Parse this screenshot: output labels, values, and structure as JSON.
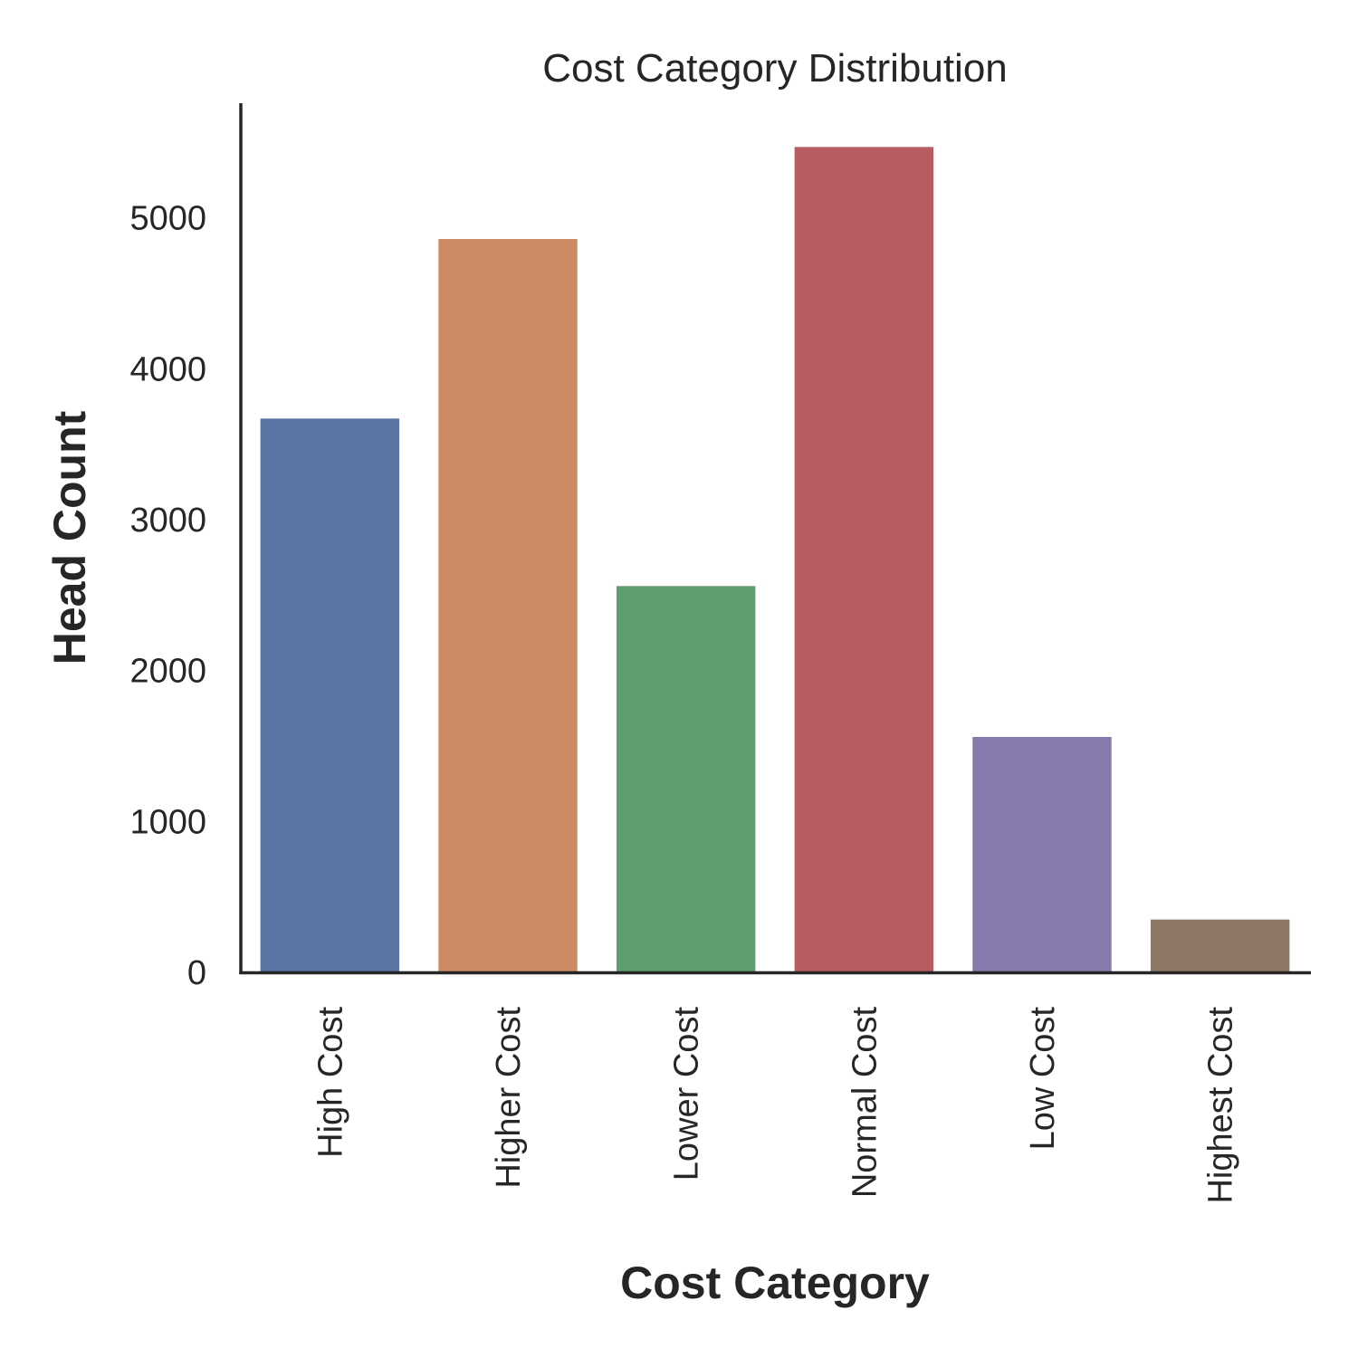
{
  "chart_data": {
    "type": "bar",
    "title": "Cost Category Distribution",
    "xlabel": "Cost Category",
    "ylabel": "Head Count",
    "categories": [
      "High Cost",
      "Higher Cost",
      "Lower Cost",
      "Normal Cost",
      "Low Cost",
      "Highest Cost"
    ],
    "values": [
      3670,
      4860,
      2560,
      5470,
      1560,
      350
    ],
    "colors": [
      "#5975a4",
      "#cc8963",
      "#5f9e6e",
      "#b55d60",
      "#857aab",
      "#8d7866"
    ],
    "ylim": [
      0,
      5760
    ],
    "yticks": [
      0,
      1000,
      2000,
      3000,
      4000,
      5000
    ],
    "grid": false,
    "legend": "none"
  }
}
